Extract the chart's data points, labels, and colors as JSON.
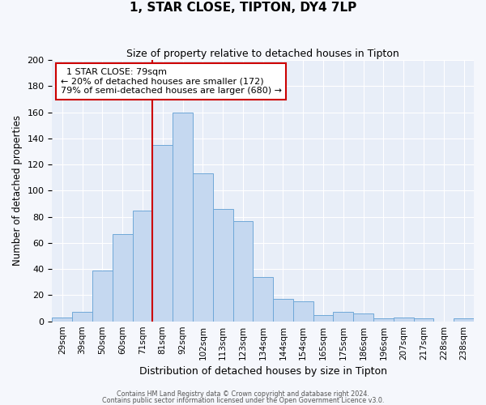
{
  "title": "1, STAR CLOSE, TIPTON, DY4 7LP",
  "subtitle": "Size of property relative to detached houses in Tipton",
  "xlabel": "Distribution of detached houses by size in Tipton",
  "ylabel": "Number of detached properties",
  "bar_labels": [
    "29sqm",
    "39sqm",
    "50sqm",
    "60sqm",
    "71sqm",
    "81sqm",
    "92sqm",
    "102sqm",
    "113sqm",
    "123sqm",
    "134sqm",
    "144sqm",
    "154sqm",
    "165sqm",
    "175sqm",
    "186sqm",
    "196sqm",
    "207sqm",
    "217sqm",
    "228sqm",
    "238sqm"
  ],
  "bar_values": [
    3,
    7,
    39,
    67,
    85,
    135,
    160,
    113,
    86,
    77,
    34,
    17,
    15,
    5,
    7,
    6,
    2,
    3,
    2,
    0,
    2
  ],
  "bar_color": "#c5d8f0",
  "bar_edge_color": "#6fa8d8",
  "background_color": "#e8eef8",
  "vline_position": 4.5,
  "vline_color": "#cc0000",
  "annotation_title": "1 STAR CLOSE: 79sqm",
  "annotation_line1": "← 20% of detached houses are smaller (172)",
  "annotation_line2": "79% of semi-detached houses are larger (680) →",
  "annotation_box_color": "#ffffff",
  "annotation_box_edge": "#cc0000",
  "ylim": [
    0,
    200
  ],
  "yticks": [
    0,
    20,
    40,
    60,
    80,
    100,
    120,
    140,
    160,
    180,
    200
  ],
  "footer1": "Contains HM Land Registry data © Crown copyright and database right 2024.",
  "footer2": "Contains public sector information licensed under the Open Government Licence v3.0.",
  "fig_facecolor": "#f5f7fc",
  "title_fontsize": 11,
  "subtitle_fontsize": 9
}
